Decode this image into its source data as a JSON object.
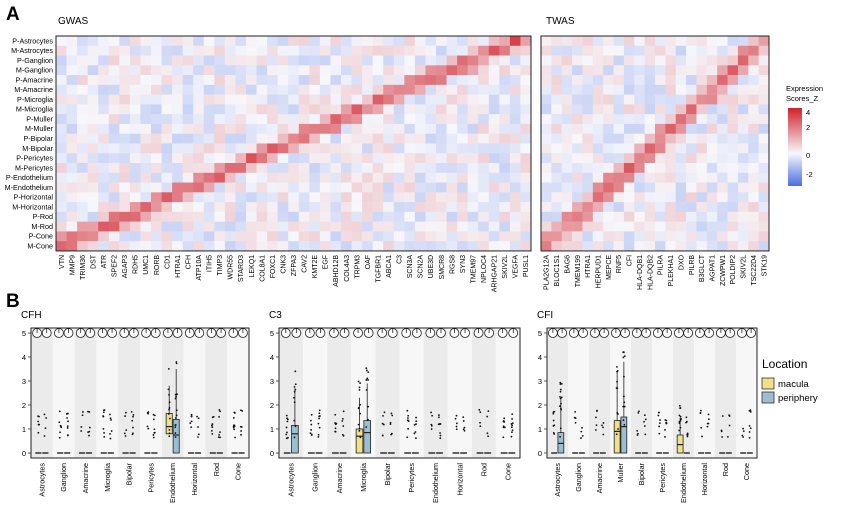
{
  "panel_a": {
    "letter": "A",
    "gwas_title": "GWAS",
    "twas_title": "TWAS",
    "legend_title_1": "Expression",
    "legend_title_2": "Scores_Z",
    "legend_ticks": [
      "4",
      "2",
      "0",
      "-2"
    ],
    "colors": {
      "low": "#4a6fe3",
      "mid": "#f7f7fb",
      "high": "#d0222b"
    }
  },
  "panel_b": {
    "letter": "B",
    "location_title": "Location",
    "location_items": [
      {
        "label": "macula",
        "color": "#f0e08a"
      },
      {
        "label": "periphery",
        "color": "#9bbfd1"
      }
    ]
  },
  "chart_data": [
    {
      "type": "heatmap",
      "title": "GWAS",
      "rows": [
        "P-Astrocytes",
        "M-Astrocytes",
        "P-Ganglion",
        "M-Ganglion",
        "P-Amacrine",
        "M-Amacrine",
        "P-Microglia",
        "M-Microglia",
        "P-Muller",
        "M-Muller",
        "P-Bipolar",
        "M-Bipolar",
        "P-Pericytes",
        "M-Pericytes",
        "P-Endothelium",
        "M-Endothelium",
        "P-Horizontal",
        "M-Horizontal",
        "P-Rod",
        "M-Rod",
        "P-Cone",
        "M-Cone"
      ],
      "columns": [
        "VTN",
        "MMP9",
        "TRIM36",
        "DST",
        "ATR",
        "SPEF2",
        "AGAP3",
        "RDH5",
        "UMC1",
        "RORB",
        "CD1",
        "HTRA1",
        "CFH",
        "ATP10A",
        "ITIH5",
        "TIMP3",
        "WDR55",
        "STARD3",
        "LEKQ1",
        "COL8A1",
        "FOXC1",
        "CNK3",
        "ZFPA3",
        "CAV2",
        "KMT2E",
        "EGF",
        "ABHD12B",
        "COL4A3",
        "TRPM3",
        "OAF",
        "TGFBR1",
        "ABCA1",
        "C3",
        "SCN3A",
        "SCN2A",
        "UBE3D",
        "SMCR8",
        "RGS8",
        "SYN3",
        "TMEM97",
        "NPLOC4",
        "ARHGAP21",
        "SKIV2L",
        "VEGFA",
        "PUSL1"
      ],
      "value_range": [
        -3,
        4.5
      ]
    },
    {
      "type": "heatmap",
      "title": "TWAS",
      "rows": [
        "P-Astrocytes",
        "M-Astrocytes",
        "P-Ganglion",
        "M-Ganglion",
        "P-Amacrine",
        "M-Amacrine",
        "P-Microglia",
        "M-Microglia",
        "P-Muller",
        "M-Muller",
        "P-Bipolar",
        "M-Bipolar",
        "P-Pericytes",
        "M-Pericytes",
        "P-Endothelium",
        "M-Endothelium",
        "P-Horizontal",
        "M-Horizontal",
        "P-Rod",
        "M-Rod",
        "P-Cone",
        "M-Cone"
      ],
      "columns": [
        "PLA2G12A",
        "BLOC1S1",
        "BAG6",
        "TMEM199",
        "HTRA1",
        "HERPUD1",
        "MEPCE",
        "RNF5",
        "CFI",
        "HLA-DQB1",
        "HLA-DQB2",
        "PILRA",
        "PLEKHA1",
        "DXO",
        "PILRB",
        "B3GLCT",
        "AGPAT1",
        "ZCWPW1",
        "POLDIP2",
        "SKIV2L",
        "TSC22D4",
        "STK19"
      ],
      "value_range": [
        -3,
        4.5
      ]
    },
    {
      "type": "box",
      "title": "CFH",
      "categories": [
        "Astrocytes",
        "Ganglion",
        "Amacrine",
        "Microglia",
        "Bipolar",
        "Pericytes",
        "Endothelium",
        "Horizontal",
        "Rod",
        "Cone"
      ],
      "y_ticks": [
        0,
        1,
        2,
        3,
        4,
        5
      ],
      "series": [
        {
          "name": "macula",
          "q1": [
            0,
            0,
            0,
            0,
            0,
            0,
            0.8,
            0,
            0,
            0
          ],
          "median": [
            0,
            0,
            0,
            0,
            0,
            0,
            1.1,
            0,
            0,
            0
          ],
          "q3": [
            0,
            0,
            0,
            0,
            0,
            0,
            1.65,
            0,
            0,
            0
          ],
          "whisker_high": [
            0,
            0,
            0,
            0,
            0,
            0,
            2.8,
            0,
            0,
            0
          ]
        },
        {
          "name": "periphery",
          "q1": [
            0,
            0,
            0,
            0,
            0,
            0,
            0,
            0,
            0,
            0
          ],
          "median": [
            0,
            0,
            0,
            0,
            0,
            0,
            0.75,
            0,
            0,
            0
          ],
          "q3": [
            0,
            0,
            0,
            0,
            0,
            0,
            1.4,
            0,
            0,
            0
          ],
          "whisker_high": [
            0,
            0,
            0,
            0,
            0,
            0,
            3.5,
            0,
            0,
            0
          ]
        }
      ]
    },
    {
      "type": "box",
      "title": "C3",
      "categories": [
        "Astrocytes",
        "Ganglion",
        "Amacrine",
        "Microglia",
        "Bipolar",
        "Pericytes",
        "Endothelium",
        "Horizontal",
        "Rod",
        "Cone"
      ],
      "y_ticks": [
        0,
        1,
        2,
        3,
        4,
        5
      ],
      "series": [
        {
          "name": "macula",
          "q1": [
            0,
            0,
            0,
            0,
            0,
            0,
            0,
            0,
            0,
            0
          ],
          "median": [
            0,
            0,
            0,
            0.7,
            0,
            0,
            0,
            0,
            0,
            0
          ],
          "q3": [
            0,
            0,
            0,
            1.0,
            0,
            0,
            0,
            0,
            0,
            0
          ],
          "whisker_high": [
            0,
            0,
            0,
            2.3,
            0,
            0,
            0,
            0,
            0,
            0
          ]
        },
        {
          "name": "periphery",
          "q1": [
            0,
            0,
            0,
            0,
            0,
            0,
            0,
            0,
            0,
            0
          ],
          "median": [
            0.8,
            0,
            0,
            0.85,
            0,
            0,
            0,
            0,
            0,
            0
          ],
          "q3": [
            1.15,
            0,
            0,
            1.35,
            0,
            0,
            0,
            0,
            0,
            0
          ],
          "whisker_high": [
            2.7,
            0,
            0,
            2.9,
            0,
            0,
            0,
            0,
            0,
            0
          ]
        }
      ]
    },
    {
      "type": "box",
      "title": "CFI",
      "categories": [
        "Astrocytes",
        "Ganglion",
        "Amacrine",
        "Muller",
        "Bipolar",
        "Pericytes",
        "Endothelium",
        "Horizontal",
        "Rod",
        "Cone"
      ],
      "y_ticks": [
        0,
        1,
        2,
        3,
        4,
        5
      ],
      "series": [
        {
          "name": "macula",
          "q1": [
            0,
            0,
            0,
            0,
            0,
            0,
            0,
            0,
            0,
            0
          ],
          "median": [
            0,
            0,
            0,
            0.9,
            0,
            0,
            0.35,
            0,
            0,
            0
          ],
          "q3": [
            0,
            0,
            0,
            1.35,
            0,
            0,
            0.75,
            0,
            0,
            0
          ],
          "whisker_high": [
            0,
            0,
            0,
            3.4,
            0,
            0,
            1.4,
            0,
            0,
            0
          ]
        },
        {
          "name": "periphery",
          "q1": [
            0,
            0,
            0,
            0,
            0,
            0,
            0,
            0,
            0,
            0
          ],
          "median": [
            0.4,
            0,
            0,
            1.1,
            0,
            0,
            0,
            0,
            0,
            0
          ],
          "q3": [
            0.85,
            0,
            0,
            1.5,
            0,
            0,
            0,
            0,
            0,
            0
          ],
          "whisker_high": [
            2.3,
            0,
            0,
            3.8,
            0,
            0,
            0,
            0,
            0,
            0
          ]
        }
      ]
    }
  ]
}
